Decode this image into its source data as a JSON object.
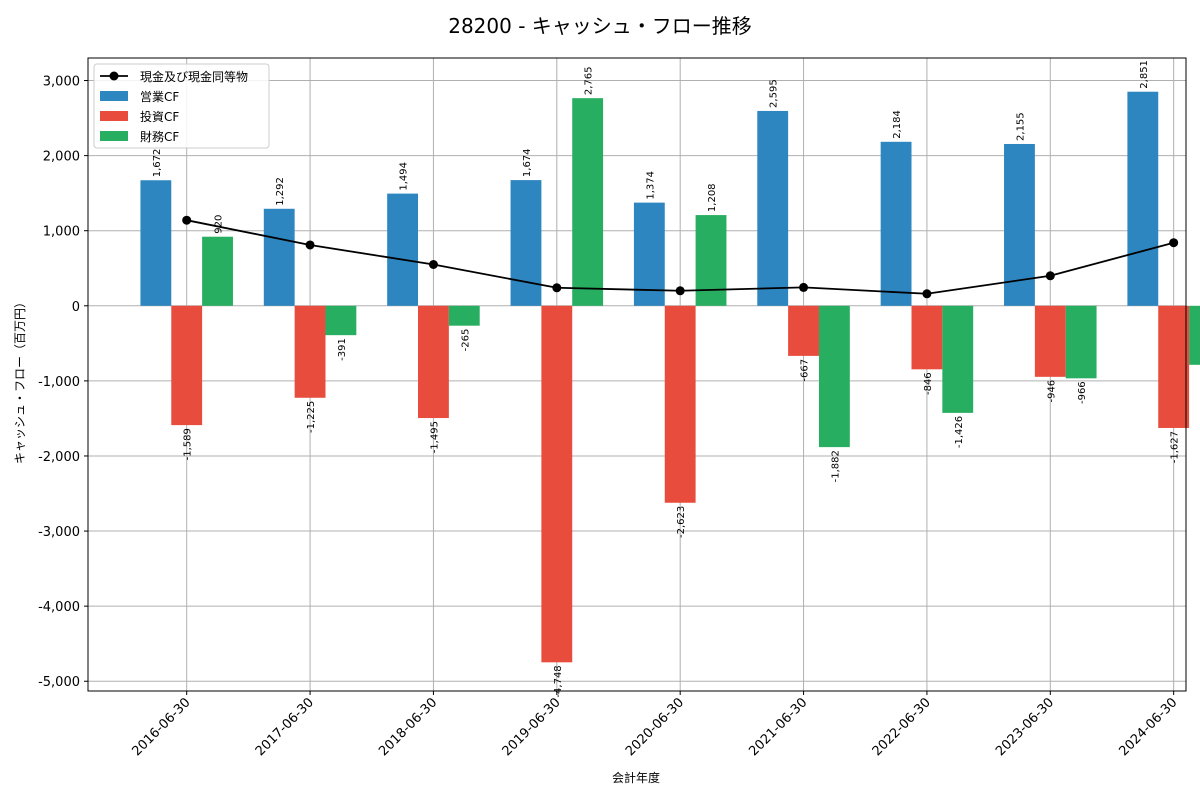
{
  "chart_data": {
    "type": "bar",
    "title": "28200 - キャッシュ・フロー推移",
    "xlabel": "会計年度",
    "ylabel": "キャッシュ・フロー（百万円）",
    "ylim": [
      -5130,
      3300
    ],
    "yticks": [
      3000,
      2000,
      1000,
      0,
      -1000,
      -2000,
      -3000,
      -4000,
      -5000
    ],
    "ytick_labels": [
      "3,000",
      "2,000",
      "1,000",
      "0",
      "-1,000",
      "-2,000",
      "-3,000",
      "-4,000",
      "-5,000"
    ],
    "grid": true,
    "legend_position": "top-left",
    "categories": [
      "2016-06-30",
      "2017-06-30",
      "2018-06-30",
      "2019-06-30",
      "2020-06-30",
      "2021-06-30",
      "2022-06-30",
      "2023-06-30",
      "2024-06-30"
    ],
    "series": [
      {
        "name": "営業CF",
        "kind": "bar",
        "color": "#2e86c1",
        "values": [
          1672,
          1292,
          1494,
          1674,
          1374,
          2595,
          2184,
          2155,
          2851
        ],
        "labels": [
          "1,672",
          "1,292",
          "1,494",
          "1,674",
          "1,374",
          "2,595",
          "2,184",
          "2,155",
          "2,851"
        ]
      },
      {
        "name": "投資CF",
        "kind": "bar",
        "color": "#e74c3c",
        "values": [
          -1589,
          -1225,
          -1495,
          -4748,
          -2623,
          -667,
          -846,
          -946,
          -1627
        ],
        "labels": [
          "-1,589",
          "-1,225",
          "-1,495",
          "-4,748",
          "-2,623",
          "-667",
          "-846",
          "-946",
          "-1,627"
        ]
      },
      {
        "name": "財務CF",
        "kind": "bar",
        "color": "#27ae60",
        "values": [
          920,
          -391,
          -265,
          2765,
          1208,
          -1882,
          -1426,
          -966,
          -786
        ],
        "labels": [
          "920",
          "-391",
          "-265",
          "2,765",
          "1,208",
          "-1,882",
          "-1,426",
          "-966",
          "-786"
        ]
      },
      {
        "name": "現金及び現金同等物",
        "kind": "line",
        "color": "#000000",
        "values": [
          1140,
          810,
          550,
          240,
          200,
          245,
          160,
          400,
          840
        ]
      }
    ]
  }
}
